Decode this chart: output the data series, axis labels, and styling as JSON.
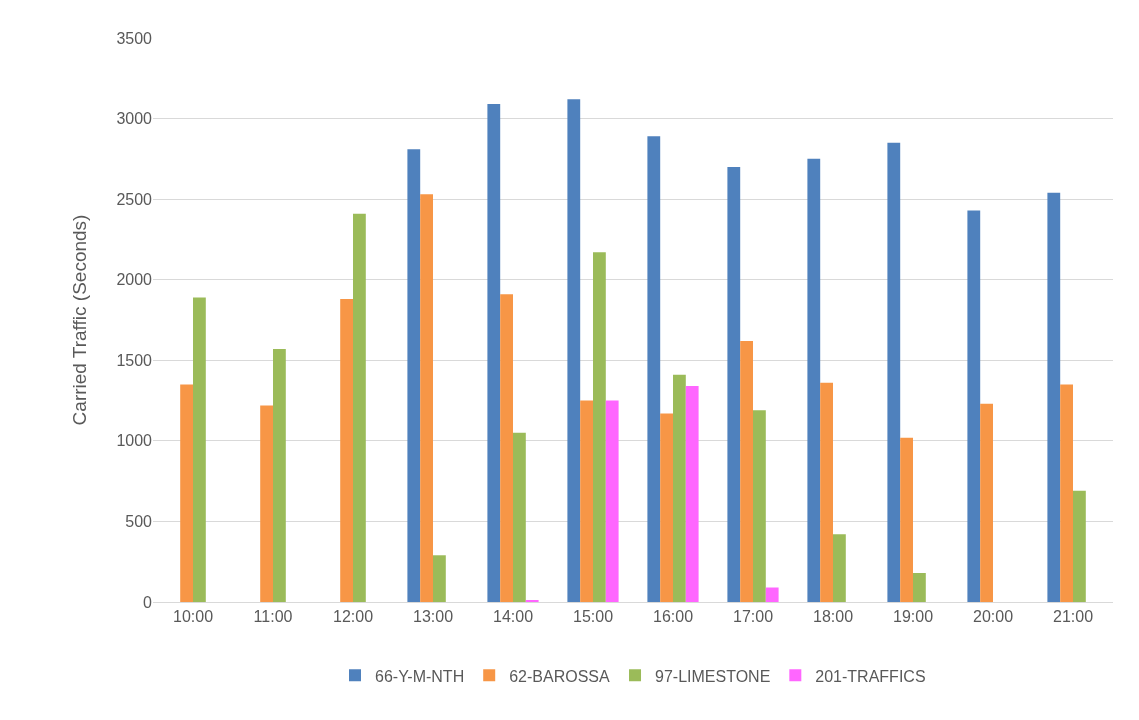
{
  "chart_data": {
    "type": "bar",
    "ylabel": "Carried Traffic (Seconds)",
    "categories": [
      "10:00",
      "11:00",
      "12:00",
      "13:00",
      "14:00",
      "15:00",
      "16:00",
      "17:00",
      "18:00",
      "19:00",
      "20:00",
      "21:00"
    ],
    "series": [
      {
        "name": "66-Y-M-NTH",
        "color": "#4f81bd",
        "values": [
          null,
          null,
          null,
          2810,
          3090,
          3120,
          2890,
          2700,
          2750,
          2850,
          2430,
          2540
        ]
      },
      {
        "name": "62-BAROSSA",
        "color": "#f79646",
        "values": [
          1350,
          1220,
          1880,
          2530,
          1910,
          1250,
          1170,
          1620,
          1360,
          1020,
          1230,
          1350
        ]
      },
      {
        "name": "97-LIMESTONE",
        "color": "#9bbb59",
        "values": [
          1890,
          1570,
          2410,
          290,
          1050,
          2170,
          1410,
          1190,
          420,
          180,
          null,
          690
        ]
      },
      {
        "name": "201-TRAFFICS",
        "color": "#ff66ff",
        "values": [
          null,
          null,
          null,
          null,
          10,
          1250,
          1340,
          90,
          null,
          null,
          null,
          null
        ]
      }
    ],
    "ylim": [
      0,
      3500
    ],
    "yticks": [
      0,
      500,
      1000,
      1500,
      2000,
      2500,
      3000,
      3500
    ],
    "grid": "y",
    "legend": "bottom"
  }
}
